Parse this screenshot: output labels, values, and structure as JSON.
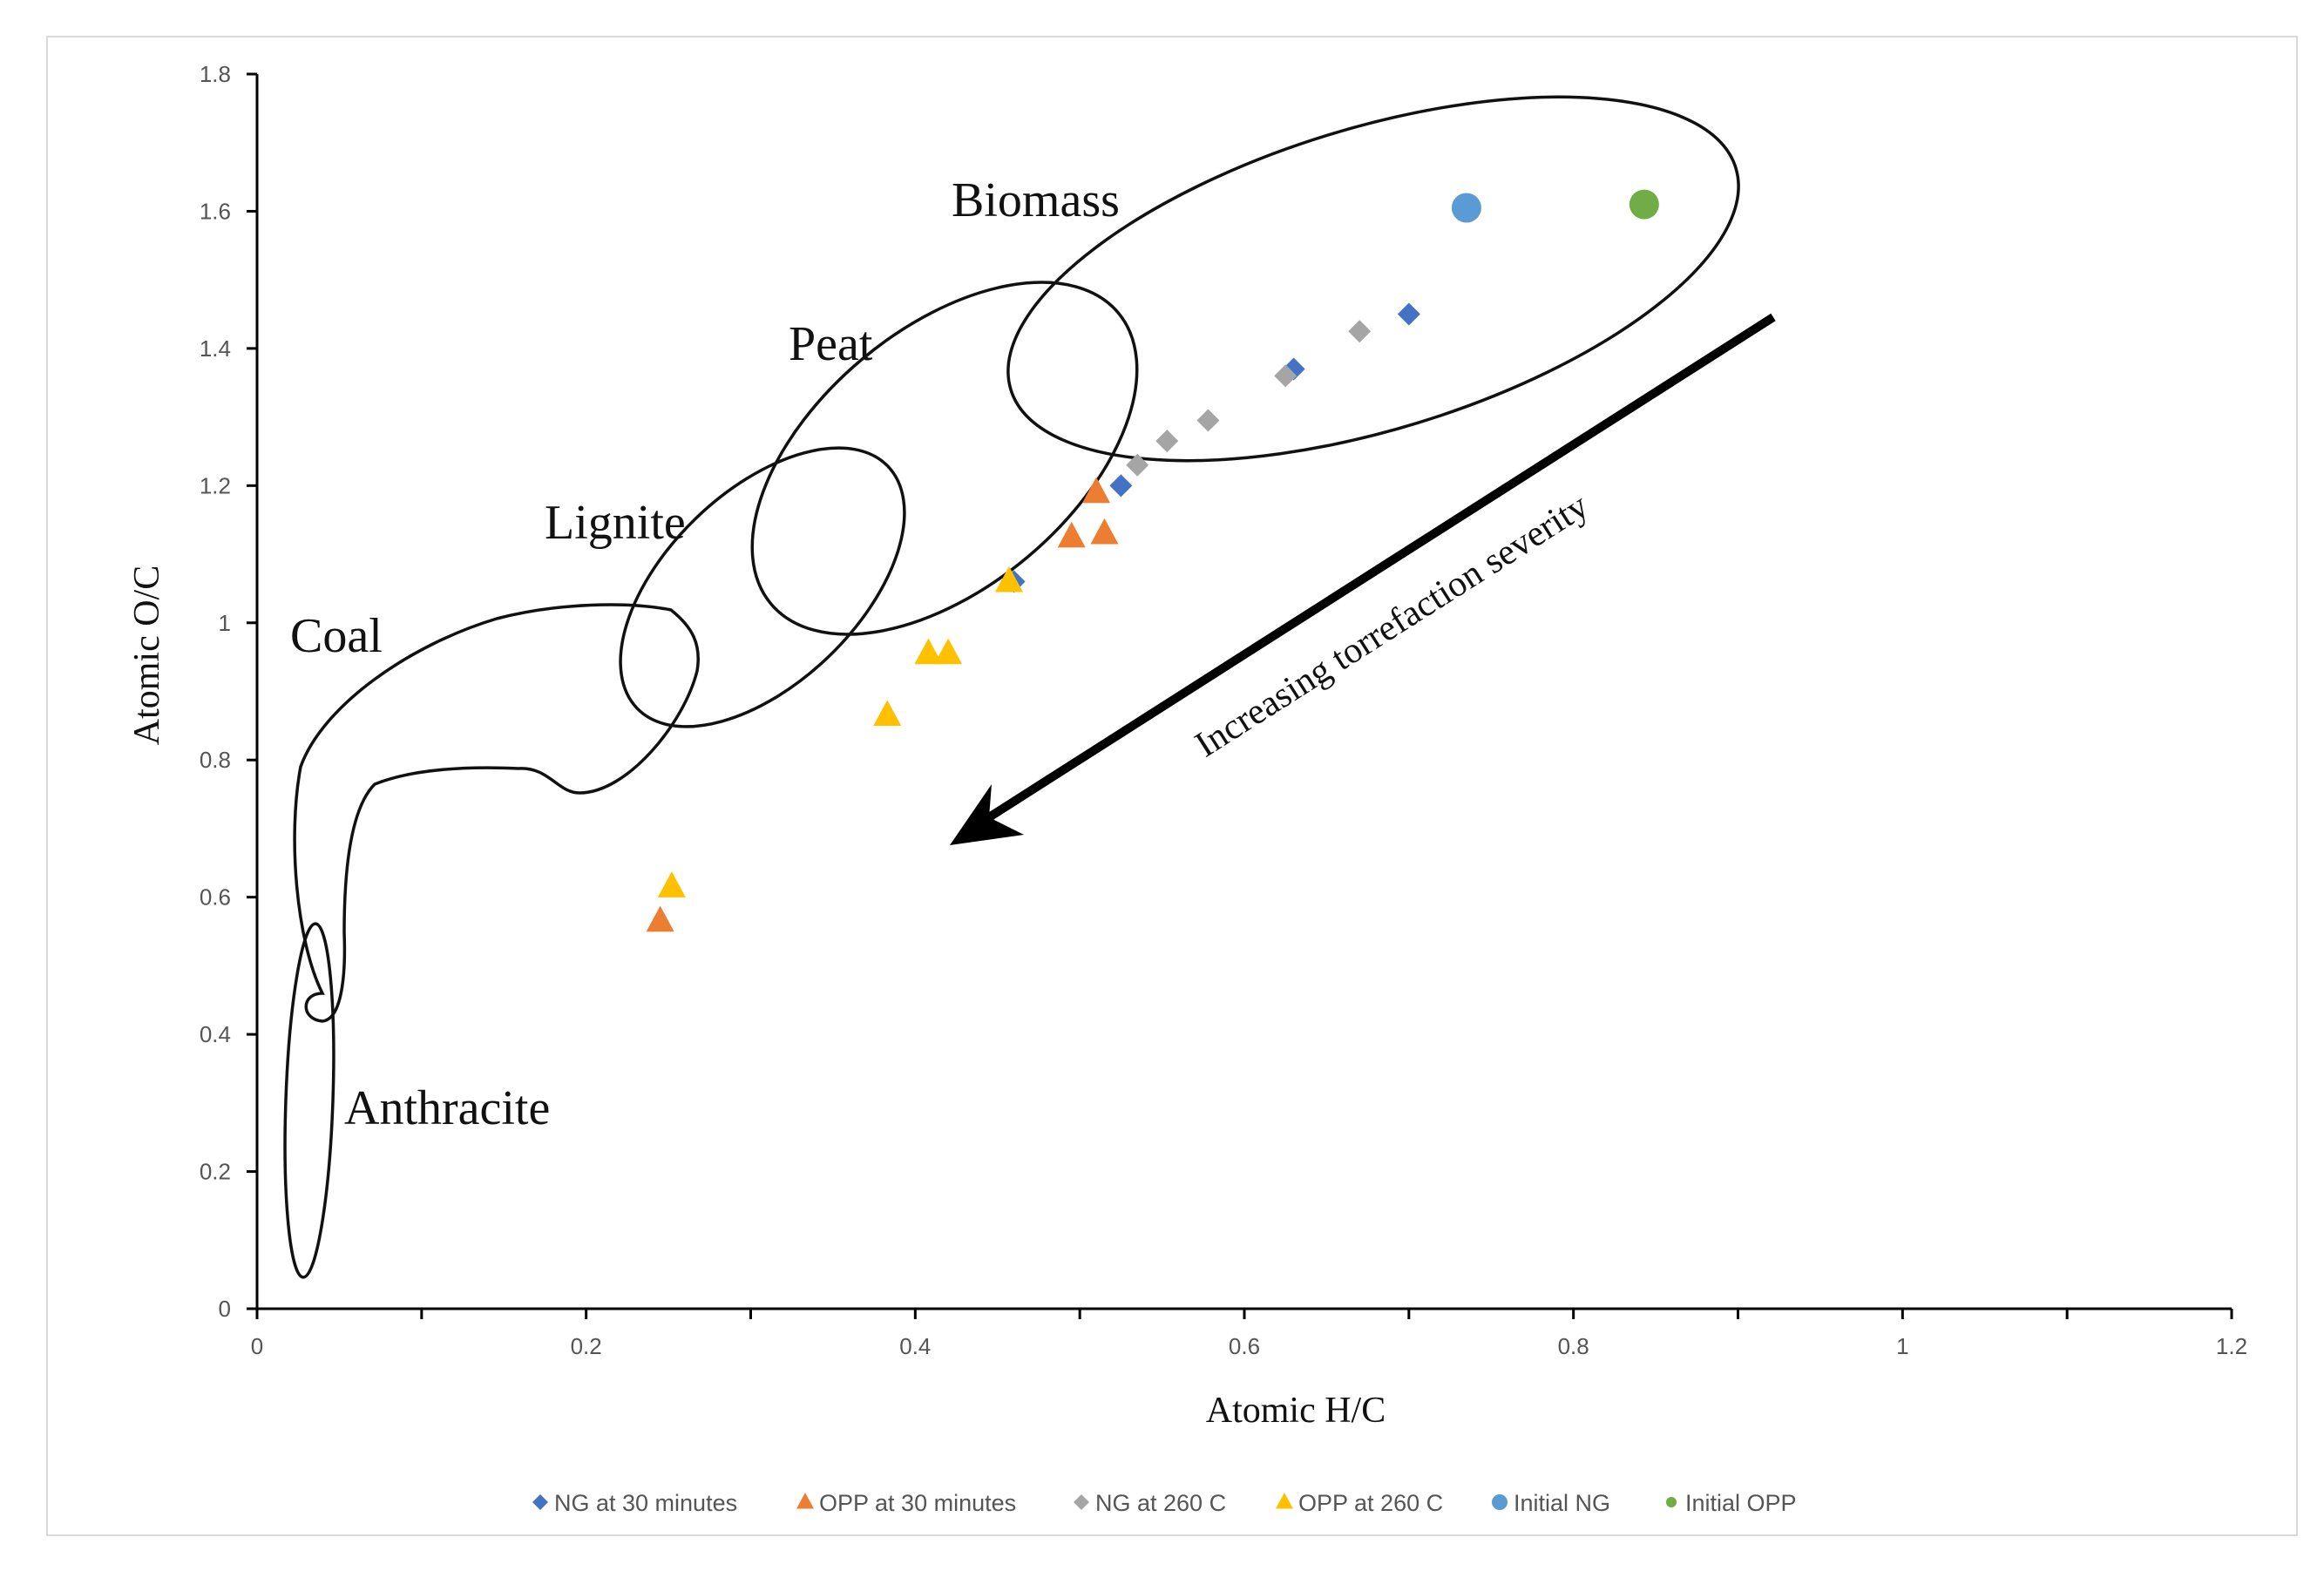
{
  "chart_data": {
    "type": "scatter",
    "xlabel": "Atomic H/C",
    "ylabel": "Atomic O/C",
    "xlim": [
      0,
      1.2
    ],
    "ylim": [
      0,
      1.8
    ],
    "x_ticks": [
      "0",
      "0.2",
      "0.4",
      "0.6",
      "0.8",
      "1",
      "1.2"
    ],
    "y_ticks": [
      "0",
      "0.2",
      "0.4",
      "0.6",
      "0.8",
      "1",
      "1.2",
      "1.4",
      "1.6",
      "1.8"
    ],
    "grid": false,
    "legend_position": "bottom",
    "region_labels": [
      "Biomass",
      "Peat",
      "Lignite",
      "Coal",
      "Anthracite"
    ],
    "annotation": "Increasing torrefaction severity",
    "series": [
      {
        "name": "NG at 30 minutes",
        "marker": "diamond",
        "color": "#4472C4",
        "points": [
          [
            0.7,
            1.45
          ],
          [
            0.63,
            1.37
          ],
          [
            0.525,
            1.2
          ],
          [
            0.46,
            1.06
          ]
        ]
      },
      {
        "name": "OPP at 30 minutes",
        "marker": "triangle",
        "color": "#ED7D31",
        "points": [
          [
            0.51,
            1.19
          ],
          [
            0.515,
            1.13
          ],
          [
            0.495,
            1.125
          ],
          [
            0.245,
            0.565
          ]
        ]
      },
      {
        "name": "NG at 260 C",
        "marker": "diamond",
        "color": "#A5A5A5",
        "points": [
          [
            0.67,
            1.425
          ],
          [
            0.625,
            1.36
          ],
          [
            0.578,
            1.295
          ],
          [
            0.553,
            1.265
          ],
          [
            0.535,
            1.23
          ]
        ]
      },
      {
        "name": "OPP at 260 C",
        "marker": "triangle",
        "color": "#FFC000",
        "points": [
          [
            0.457,
            1.06
          ],
          [
            0.42,
            0.955
          ],
          [
            0.408,
            0.955
          ],
          [
            0.383,
            0.865
          ],
          [
            0.252,
            0.615
          ]
        ]
      },
      {
        "name": "Initial NG",
        "marker": "circle",
        "color": "#5B9BD5",
        "points": [
          [
            0.735,
            1.605
          ]
        ]
      },
      {
        "name": "Initial OPP",
        "marker": "circle",
        "color": "#70AD47",
        "points": [
          [
            0.843,
            1.61
          ]
        ]
      }
    ]
  }
}
